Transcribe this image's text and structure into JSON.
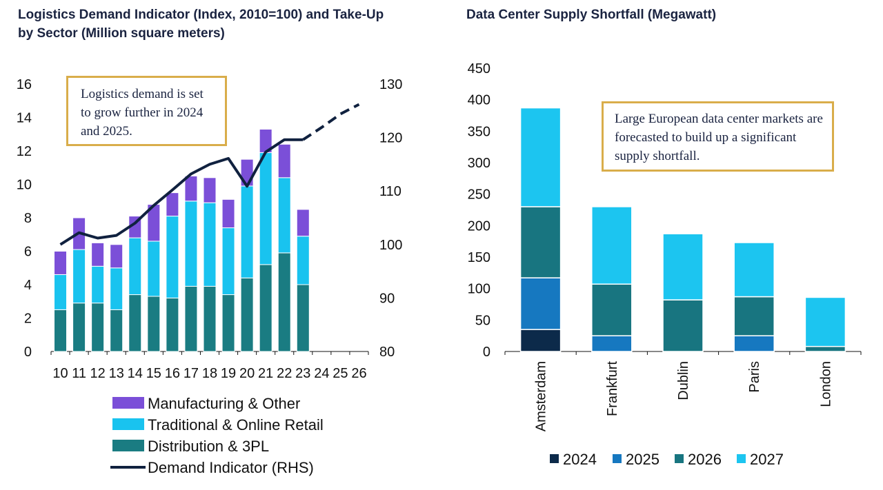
{
  "charts_header": {
    "left_title": "Logistics Demand Indicator (Index, 2010=100) and Take-Up by Sector (Million square meters)",
    "right_title": "Data Center Supply Shortfall (Megawatt)"
  },
  "annotations": {
    "left": "Logistics demand is set to grow further in 2024 and 2025.",
    "right": "Large European data center markets are forecasted to build up a significant supply shortfall."
  },
  "colors": {
    "manufacturing": "#7b4fd8",
    "retail": "#19c3ef",
    "distribution": "#1a7c82",
    "demand_line": "#10213f",
    "y2024": "#0c2a4a",
    "y2025": "#1678c0",
    "y2026": "#187580",
    "y2027": "#1cc5f0",
    "annotation_border": "#d9ad4a"
  },
  "chart_data": [
    {
      "type": "bar",
      "stacked": true,
      "title": "Logistics Demand Indicator (Index, 2010=100) and Take-Up by Sector (Million square meters)",
      "categories": [
        "10",
        "11",
        "12",
        "13",
        "14",
        "15",
        "16",
        "17",
        "18",
        "19",
        "20",
        "21",
        "22",
        "23",
        "24",
        "25",
        "26"
      ],
      "ylim": [
        0,
        16
      ],
      "y_ticks": [
        "0",
        "2",
        "4",
        "6",
        "8",
        "10",
        "12",
        "14",
        "16"
      ],
      "y2lim": [
        80,
        130
      ],
      "y2_ticks": [
        "80",
        "90",
        "100",
        "110",
        "120",
        "130"
      ],
      "series": [
        {
          "name": "Distribution & 3PL",
          "color_key": "distribution",
          "values": [
            2.5,
            2.9,
            2.9,
            2.5,
            3.4,
            3.3,
            3.2,
            3.9,
            3.9,
            3.4,
            4.4,
            5.2,
            5.9,
            4.0,
            null,
            null,
            null
          ]
        },
        {
          "name": "Traditional & Online Retail",
          "color_key": "retail",
          "values": [
            2.1,
            3.2,
            2.2,
            2.5,
            3.4,
            3.3,
            4.9,
            5.1,
            5.0,
            4.0,
            5.5,
            6.7,
            4.5,
            2.9,
            null,
            null,
            null
          ]
        },
        {
          "name": "Manufacturing & Other",
          "color_key": "manufacturing",
          "values": [
            1.4,
            1.9,
            1.4,
            1.4,
            1.3,
            2.2,
            1.4,
            1.5,
            1.5,
            1.7,
            1.6,
            1.4,
            2.0,
            1.6,
            null,
            null,
            null
          ]
        },
        {
          "name": "Demand Indicator (RHS)",
          "type": "line",
          "axis": "right",
          "color_key": "demand_line",
          "values": [
            100,
            102.2,
            101.2,
            101.7,
            104,
            107.3,
            110.2,
            113.2,
            115,
            116.1,
            110.9,
            117.3,
            119.6,
            119.6,
            121.9,
            124.4,
            126.2
          ],
          "forecast_from_index": 13
        }
      ],
      "legend": {
        "placement": "bottom",
        "entries": [
          "Manufacturing & Other",
          "Traditional & Online Retail",
          "Distribution & 3PL",
          "Demand Indicator (RHS)"
        ]
      }
    },
    {
      "type": "bar",
      "stacked": true,
      "title": "Data Center Supply Shortfall (Megawatt)",
      "categories": [
        "Amsterdam",
        "Frankfurt",
        "Dublin",
        "Paris",
        "London"
      ],
      "ylim": [
        0,
        450
      ],
      "y_ticks": [
        "0",
        "50",
        "100",
        "150",
        "200",
        "250",
        "300",
        "350",
        "400",
        "450"
      ],
      "series": [
        {
          "name": "2024",
          "color_key": "y2024",
          "values": [
            35,
            0,
            0,
            0,
            0
          ]
        },
        {
          "name": "2025",
          "color_key": "y2025",
          "values": [
            82,
            25,
            0,
            25,
            0
          ]
        },
        {
          "name": "2026",
          "color_key": "y2026",
          "values": [
            113,
            82,
            82,
            62,
            8
          ]
        },
        {
          "name": "2027",
          "color_key": "y2027",
          "values": [
            157,
            123,
            105,
            86,
            78
          ]
        }
      ],
      "legend": {
        "placement": "bottom",
        "entries": [
          "2024",
          "2025",
          "2026",
          "2027"
        ]
      }
    }
  ]
}
